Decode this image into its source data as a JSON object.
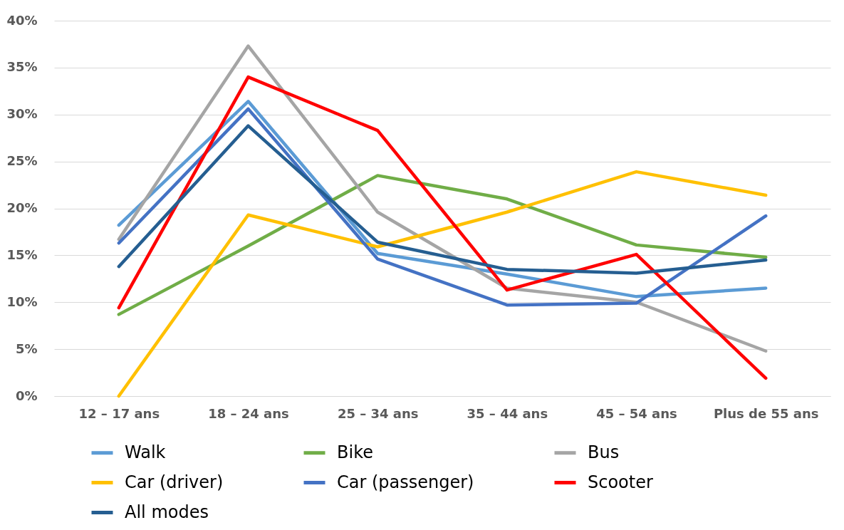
{
  "chart_data": {
    "type": "line",
    "categories": [
      "12 – 17 ans",
      "18 – 24 ans",
      "25 – 34 ans",
      "35 – 44 ans",
      "45 – 54 ans",
      "Plus de 55 ans"
    ],
    "series": [
      {
        "name": "Walk",
        "color": "#5b9bd5",
        "values": [
          18.2,
          31.4,
          15.2,
          13.0,
          10.6,
          11.5
        ]
      },
      {
        "name": "Bike",
        "color": "#70ad47",
        "values": [
          8.7,
          16.0,
          23.5,
          21.0,
          16.1,
          14.8
        ]
      },
      {
        "name": "Bus",
        "color": "#a5a5a5",
        "values": [
          16.7,
          37.3,
          19.6,
          11.5,
          10.0,
          4.8
        ]
      },
      {
        "name": "Car (driver)",
        "color": "#ffc000",
        "values": [
          0,
          19.3,
          15.9,
          19.6,
          23.9,
          21.4
        ]
      },
      {
        "name": "Car (passenger)",
        "color": "#4472c4",
        "values": [
          16.3,
          30.6,
          14.6,
          9.7,
          9.9,
          19.2
        ]
      },
      {
        "name": "Scooter",
        "color": "#ff0000",
        "values": [
          9.4,
          34.0,
          28.3,
          11.3,
          15.1,
          1.9
        ]
      },
      {
        "name": "All modes",
        "color": "#255e91",
        "values": [
          13.8,
          28.8,
          16.4,
          13.5,
          13.1,
          14.5
        ]
      }
    ],
    "ylim": [
      0,
      40
    ],
    "yticks": [
      {
        "value": 0,
        "label": "0%"
      },
      {
        "value": 5,
        "label": "5%"
      },
      {
        "value": 10,
        "label": "10%"
      },
      {
        "value": 15,
        "label": "15%"
      },
      {
        "value": 20,
        "label": "20%"
      },
      {
        "value": 25,
        "label": "25%"
      },
      {
        "value": 30,
        "label": "30%"
      },
      {
        "value": 35,
        "label": "35%"
      },
      {
        "value": 40,
        "label": "40%"
      }
    ],
    "grid": "y",
    "legend": "bottom"
  }
}
